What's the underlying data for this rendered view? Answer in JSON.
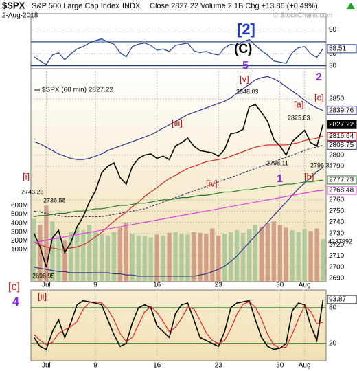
{
  "header": {
    "symbol": "$SPX",
    "name": "S&P 500 Large Cap Index",
    "exchange": "INDX",
    "date": "2-Aug-2018",
    "quote": "Close 2827.22  Volume 2.1B  Chg +13.86 (+0.49%)",
    "watermark": "© StockCharts.com"
  },
  "annotations": {
    "wave_2": "[2]",
    "wave_C": "(C)",
    "wave_5": "5",
    "wave_2_minor": "2",
    "wave_v": "[v]",
    "wave_a": "[a]",
    "wave_c": "[c]",
    "wave_iii": "[iii]",
    "wave_iv": "[iv]",
    "wave_1": "1",
    "wave_b": "[b]",
    "wave_i": "[i]",
    "wave_c_left": "[c]",
    "wave_4": "4",
    "wave_ii": "[ii]",
    "high_label": "2848.03",
    "label_2825": "2825.83",
    "label_2798": "2798.11",
    "label_2796": "2796.34",
    "label_2743": "2743.26",
    "label_2736": "2736.58",
    "label_2698": "2698.95",
    "volume_label": "4237992"
  },
  "chart_data": [
    {
      "type": "line",
      "categories": [
        null,
        null,
        "Jul",
        null,
        null,
        null,
        null,
        null,
        null,
        null,
        "9",
        null,
        null,
        null,
        null,
        null,
        null,
        null,
        null,
        null,
        "16",
        null,
        null,
        null,
        null,
        null,
        null,
        null,
        null,
        null,
        "23",
        null,
        null,
        null,
        null,
        null,
        null,
        null,
        null,
        null,
        "30",
        null,
        null,
        null,
        "Aug",
        null,
        null,
        null
      ],
      "ylim": [
        2687,
        2877
      ],
      "yticks": [
        2690,
        2700,
        2710,
        2720,
        2730,
        2740,
        2750,
        2760,
        2790,
        2800,
        2850
      ],
      "grid": true,
      "y2lim": [
        -264000000,
        2153000000
      ],
      "y2ticks": [
        {
          "value": 100000000,
          "label": "100M"
        },
        {
          "value": 200000000,
          "label": "200M"
        },
        {
          "value": 300000000,
          "label": "300M"
        },
        {
          "value": 400000000,
          "label": "400M"
        },
        {
          "value": 500000000,
          "label": "500M"
        },
        {
          "value": 600000000,
          "label": "600M"
        }
      ],
      "series": [
        {
          "name": "$SPX (60 min) 2827.22",
          "color": "#000000",
          "end_label": "2827.22",
          "values": [
            2730,
            2718,
            2700,
            2726,
            2733,
            2713,
            2722,
            2736,
            2745,
            2758,
            2768,
            2784,
            2790,
            2793,
            2780,
            2774,
            2790,
            2797,
            2800,
            2801,
            2797,
            2799,
            2796,
            2808,
            2811,
            2815,
            2808,
            2804,
            2803,
            2802,
            2799,
            2805,
            2819,
            2820,
            2823,
            2843,
            2845,
            2838,
            2830,
            2814,
            2808,
            2800,
            2812,
            2817,
            2822,
            2811,
            2808,
            2827.22
          ]
        },
        {
          "color": "#2b2f8f",
          "end_label": "2839.76",
          "values": [
            2812,
            2810,
            2807,
            2804,
            2801,
            2799,
            2797,
            2796,
            2796,
            2797,
            2799,
            2801,
            2804,
            2806,
            2808,
            2810,
            2812,
            2814,
            2816,
            2818,
            2821,
            2824,
            2827,
            2830,
            2833,
            2836,
            2838,
            2840,
            2842,
            2844,
            2846,
            2848,
            2851,
            2855,
            2859,
            2863,
            2867,
            2869,
            2870,
            2868,
            2865,
            2861,
            2857,
            2853,
            2849,
            2845,
            2842,
            2839.76
          ]
        },
        {
          "color": "#2b2f8f",
          "values": [
            2700,
            2699,
            2698,
            2697,
            2696,
            2696,
            2695,
            2695,
            2695,
            2695,
            2695,
            2695,
            2695,
            2694,
            2694,
            2693,
            2693,
            2692,
            2692,
            2692,
            2692,
            2692,
            2692,
            2692,
            2692,
            2692,
            2692,
            2693,
            2694,
            2696,
            2698,
            2701,
            2705,
            2710,
            2716,
            2722,
            2728,
            2734,
            2740,
            2746,
            2752,
            2758,
            2764,
            2770,
            2775,
            2780,
            2785,
            2789
          ]
        },
        {
          "color": "#d22020",
          "end_label": "2816.64",
          "values": [
            2722,
            2720,
            2718,
            2717,
            2716,
            2716,
            2717,
            2718,
            2720,
            2723,
            2727,
            2731,
            2736,
            2741,
            2745,
            2749,
            2754,
            2758,
            2763,
            2767,
            2771,
            2775,
            2779,
            2782,
            2785,
            2788,
            2790,
            2792,
            2794,
            2795,
            2796,
            2797,
            2799,
            2801,
            2803,
            2805,
            2807,
            2808,
            2809,
            2809,
            2809,
            2809,
            2810,
            2811,
            2813,
            2814,
            2815,
            2816.64
          ]
        },
        {
          "color": "#333366",
          "dashed": true,
          "end_label": "2808.75",
          "values": [
            2750,
            2749,
            2748,
            2747,
            2746,
            2745,
            2745,
            2745,
            2745,
            2745,
            2745,
            2745,
            2746,
            2747,
            2748,
            2749,
            2750,
            2751,
            2752,
            2754,
            2756,
            2758,
            2760,
            2762,
            2764,
            2766,
            2768,
            2770,
            2772,
            2774,
            2776,
            2778,
            2780,
            2782,
            2784,
            2786,
            2788,
            2790,
            2792,
            2794,
            2796,
            2798,
            2800,
            2802,
            2804,
            2806,
            2807,
            2808.75
          ]
        },
        {
          "color": "#1e7a1e",
          "end_label": "2777.73",
          "values": [
            2745,
            2746,
            2746,
            2747,
            2748,
            2748,
            2749,
            2750,
            2750,
            2751,
            2752,
            2752,
            2753,
            2754,
            2755,
            2755,
            2756,
            2757,
            2757,
            2758,
            2759,
            2760,
            2760,
            2761,
            2762,
            2762,
            2763,
            2764,
            2764,
            2765,
            2766,
            2767,
            2767,
            2768,
            2769,
            2769,
            2770,
            2771,
            2772,
            2772,
            2773,
            2774,
            2774,
            2775,
            2776,
            2776,
            2777,
            2777.73
          ]
        },
        {
          "color": "#e040e0",
          "end_label": "2768.48",
          "values": [
            2722,
            2723,
            2724,
            2725,
            2726,
            2727,
            2728,
            2729,
            2730,
            2731,
            2732,
            2733,
            2734,
            2735,
            2736,
            2737,
            2738,
            2739,
            2740,
            2741,
            2742,
            2743,
            2744,
            2745,
            2746,
            2747,
            2748,
            2749,
            2750,
            2751,
            2752,
            2753,
            2754,
            2755,
            2756,
            2757,
            2758,
            2759,
            2760,
            2761,
            2762,
            2763,
            2764,
            2765,
            2766,
            2767,
            2768,
            2768.48
          ]
        },
        {
          "type": "bar",
          "axis": "y2",
          "color": "#c98f7d",
          "values": [
            450000000,
            380000000,
            600000000,
            420000000,
            250000000,
            200000000,
            300000000,
            350000000,
            320000000,
            380000000,
            300000000,
            280000000,
            260000000,
            300000000,
            350000000,
            400000000,
            280000000,
            260000000,
            250000000,
            240000000,
            270000000,
            260000000,
            290000000,
            300000000,
            280000000,
            270000000,
            300000000,
            290000000,
            280000000,
            340000000,
            260000000,
            280000000,
            300000000,
            320000000,
            290000000,
            330000000,
            380000000,
            360000000,
            400000000,
            420000000,
            380000000,
            350000000,
            320000000,
            300000000,
            330000000,
            310000000,
            340000000,
            220000000
          ]
        }
      ]
    },
    {
      "type": "line",
      "ylim": [
        25,
        117
      ],
      "yticks": [
        30,
        50,
        90
      ],
      "levels": [
        70,
        30
      ],
      "shade_above": 70,
      "shade_color": "#a9c4e8",
      "series": [
        {
          "color": "#1f3f8f",
          "end_label": "58.51",
          "values": [
            45,
            38,
            32,
            48,
            52,
            40,
            50,
            58,
            62,
            68,
            72,
            75,
            70,
            66,
            52,
            45,
            62,
            66,
            68,
            64,
            56,
            58,
            54,
            64,
            66,
            68,
            55,
            52,
            54,
            50,
            48,
            60,
            66,
            64,
            70,
            74,
            64,
            55,
            48,
            38,
            36,
            34,
            52,
            60,
            62,
            50,
            44,
            58.51
          ]
        }
      ]
    },
    {
      "type": "line",
      "ylim": [
        -9,
        110
      ],
      "yticks": [
        20,
        80
      ],
      "levels": [
        80,
        20
      ],
      "series": [
        {
          "color": "#000000",
          "end_label": "93.87",
          "values": [
            30,
            15,
            10,
            40,
            60,
            30,
            55,
            85,
            92,
            90,
            88,
            85,
            60,
            35,
            15,
            20,
            55,
            80,
            85,
            80,
            50,
            40,
            30,
            70,
            85,
            88,
            60,
            30,
            25,
            20,
            15,
            40,
            80,
            88,
            90,
            92,
            60,
            30,
            15,
            10,
            12,
            20,
            75,
            88,
            85,
            50,
            25,
            93.87
          ]
        },
        {
          "color": "#e02020",
          "values": [
            35,
            25,
            18,
            22,
            37,
            43,
            48,
            57,
            77,
            89,
            90,
            88,
            78,
            60,
            37,
            23,
            30,
            52,
            73,
            82,
            72,
            57,
            40,
            47,
            62,
            81,
            78,
            59,
            38,
            25,
            20,
            25,
            45,
            69,
            86,
            90,
            81,
            61,
            35,
            18,
            12,
            14,
            36,
            61,
            83,
            74,
            53,
            56
          ]
        }
      ]
    }
  ]
}
